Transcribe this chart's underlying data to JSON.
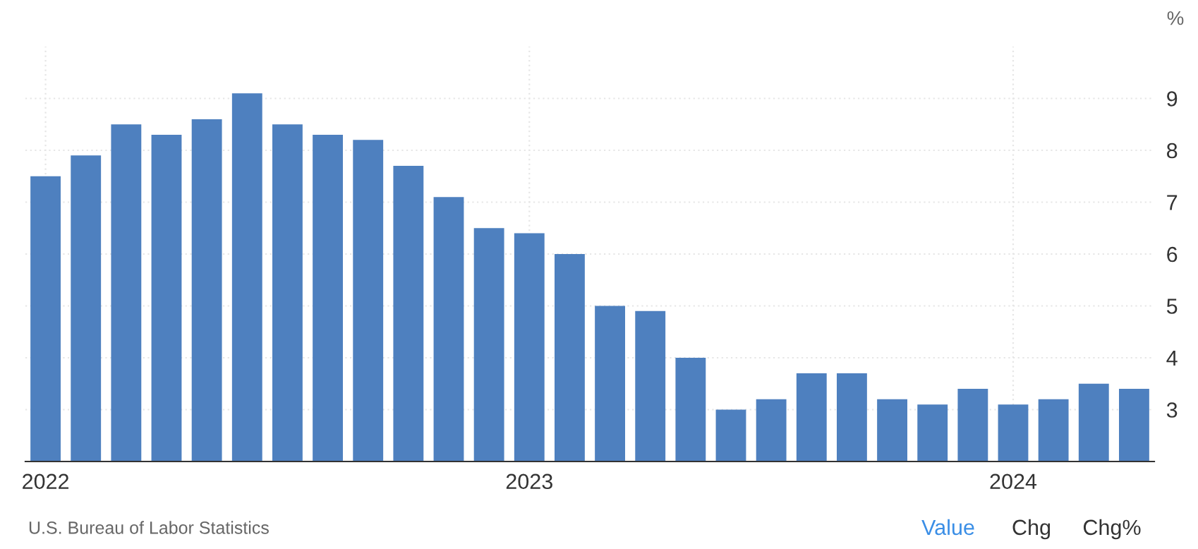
{
  "chart_data": {
    "type": "bar",
    "ylabel": "%",
    "categories": [
      "2022",
      null,
      null,
      null,
      null,
      null,
      null,
      null,
      null,
      null,
      null,
      null,
      "2023",
      null,
      null,
      null,
      null,
      null,
      null,
      null,
      null,
      null,
      null,
      null,
      "2024",
      null,
      null,
      null
    ],
    "values": [
      7.5,
      7.9,
      8.5,
      8.3,
      8.6,
      9.1,
      8.5,
      8.3,
      8.2,
      7.7,
      7.1,
      6.5,
      6.4,
      6.0,
      5.0,
      4.9,
      4.0,
      3.0,
      3.2,
      3.7,
      3.7,
      3.2,
      3.1,
      3.4,
      3.1,
      3.2,
      3.5,
      3.4
    ],
    "color": "#4e80bf",
    "ylim": [
      2,
      10
    ],
    "yticks": [
      3,
      4,
      5,
      6,
      7,
      8,
      9
    ],
    "grid": true,
    "legend": false,
    "annotations": [
      "U.S. Bureau of Labor Statistics",
      "Value",
      "Chg",
      "Chg%"
    ]
  }
}
